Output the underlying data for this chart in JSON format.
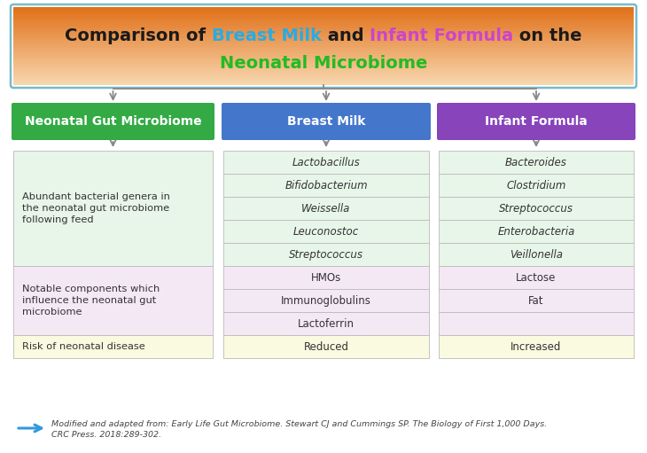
{
  "title_line1_parts": [
    {
      "text": "Comparison of ",
      "color": "#1a1a1a",
      "bold": true
    },
    {
      "text": "Breast Milk",
      "color": "#29ABE2",
      "bold": true
    },
    {
      "text": " and ",
      "color": "#1a1a1a",
      "bold": true
    },
    {
      "text": "Infant Formula",
      "color": "#CC44CC",
      "bold": true
    },
    {
      "text": " on the",
      "color": "#1a1a1a",
      "bold": true
    }
  ],
  "title_line2_parts": [
    {
      "text": "Neonatal Microbiome",
      "color": "#22BB22",
      "bold": true
    }
  ],
  "header_bg_colors": [
    "#33AA44",
    "#4477CC",
    "#8844BB"
  ],
  "header_labels": [
    "Neonatal Gut Microbiome",
    "Breast Milk",
    "Infant Formula"
  ],
  "sections": [
    {
      "label": "Abundant bacterial genera in\nthe neonatal gut microbiome\nfollowing feed",
      "col2_items": [
        "Lactobacillus",
        "Bifidobacterium",
        "Weissella",
        "Leuconostoc",
        "Streptococcus"
      ],
      "col3_items": [
        "Bacteroides",
        "Clostridium",
        "Streptococcus",
        "Enterobacteria",
        "Veillonella"
      ],
      "label_bg": "#E8F5E9",
      "col2_bg": "#E8F5E9",
      "col3_bg": "#E8F5E9",
      "italic": true,
      "n_rows": 5
    },
    {
      "label": "Notable components which\ninfluence the neonatal gut\nmicrobiome",
      "col2_items": [
        "HMOs",
        "Immunoglobulins",
        "Lactoferrin"
      ],
      "col3_items": [
        "Lactose",
        "Fat",
        ""
      ],
      "label_bg": "#F5E8F5",
      "col2_bg": "#F5E8F5",
      "col3_bg": "#F5E8F5",
      "italic": false,
      "n_rows": 3
    },
    {
      "label": "Risk of neonatal disease",
      "col2_items": [
        "Reduced"
      ],
      "col3_items": [
        "Increased"
      ],
      "label_bg": "#FAFAE0",
      "col2_bg": "#FAFAE0",
      "col3_bg": "#FAFAE0",
      "italic": false,
      "n_rows": 1
    }
  ],
  "citation_line1": "Modified and adapted from: Early Life Gut Microbiome. Stewart CJ and Cummings SP. The Biology of First 1,000 Days.",
  "citation_line2": "CRC Press. 2018:289-302.",
  "arrow_color": "#3399DD",
  "title_gradient_top": "#E07018",
  "title_gradient_bottom": "#F8D8B0",
  "title_border_color": "#77BBCC",
  "line_color": "#888888",
  "fig_w": 730,
  "fig_h": 511
}
